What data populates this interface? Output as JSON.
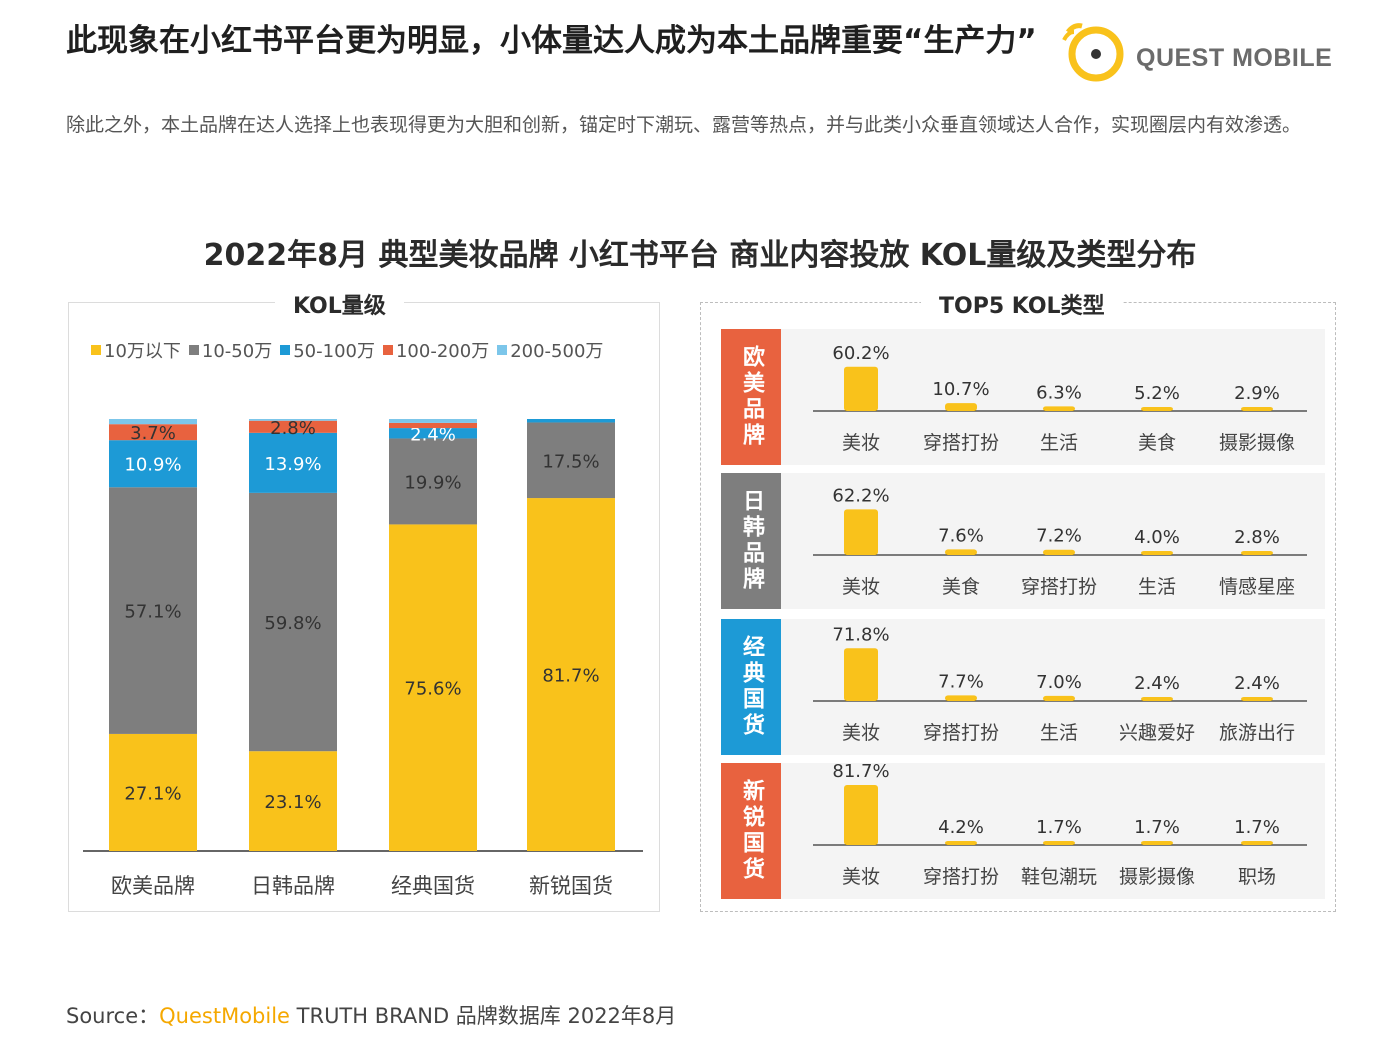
{
  "header": {
    "headline": "此现象在小红书平台更为明显，小体量达人成为本土品牌重要“生产力”",
    "subtext": "除此之外，本土品牌在达人选择上也表现得更为大胆和创新，锚定时下潮玩、露营等热点，并与此类小众垂直领域达人合作，实现圈层内有效渗透。",
    "logo_text": "QUEST MOBILE"
  },
  "chart_title": "2022年8月 典型美妆品牌 小红书平台 商业内容投放 KOL量级及类型分布",
  "colors": {
    "yellow": "#f9c21b",
    "gray": "#7e7e7e",
    "blue": "#1d9ad6",
    "orange": "#e8623f",
    "lightblue": "#7cc6ea"
  },
  "chart_data": [
    {
      "type": "bar",
      "stacked": true,
      "panel_label": "KOL量级",
      "categories": [
        "欧美品牌",
        "日韩品牌",
        "经典国货",
        "新锐国货"
      ],
      "ylim": [
        0,
        100
      ],
      "series": [
        {
          "name": "10万以下",
          "color": "#f9c21b",
          "values": [
            27.1,
            23.1,
            75.6,
            81.7
          ],
          "labels": [
            "27.1%",
            "23.1%",
            "75.6%",
            "81.7%"
          ]
        },
        {
          "name": "10-50万",
          "color": "#7e7e7e",
          "values": [
            57.1,
            59.8,
            19.9,
            17.5
          ],
          "labels": [
            "57.1%",
            "59.8%",
            "19.9%",
            "17.5%"
          ]
        },
        {
          "name": "50-100万",
          "color": "#1d9ad6",
          "values": [
            10.9,
            13.9,
            2.4,
            0.8
          ],
          "labels": [
            "10.9%",
            "13.9%",
            "2.4%",
            ""
          ]
        },
        {
          "name": "100-200万",
          "color": "#e8623f",
          "values": [
            3.7,
            2.8,
            1.2,
            0
          ],
          "labels": [
            "3.7%",
            "2.8%",
            "",
            ""
          ]
        },
        {
          "name": "200-500万",
          "color": "#7cc6ea",
          "values": [
            1.2,
            0.4,
            0.9,
            0
          ],
          "labels": [
            "",
            "",
            "",
            ""
          ]
        }
      ]
    },
    {
      "type": "bar",
      "panel_label": "TOP5 KOL类型",
      "groups": [
        {
          "name": "欧美品牌",
          "color": "#e8623f",
          "categories": [
            "美妆",
            "穿搭打扮",
            "生活",
            "美食",
            "摄影摄像"
          ],
          "values": [
            60.2,
            10.7,
            6.3,
            5.2,
            2.9
          ],
          "labels": [
            "60.2%",
            "10.7%",
            "6.3%",
            "5.2%",
            "2.9%"
          ]
        },
        {
          "name": "日韩品牌",
          "color": "#7e7e7e",
          "categories": [
            "美妆",
            "美食",
            "穿搭打扮",
            "生活",
            "情感星座"
          ],
          "values": [
            62.2,
            7.6,
            7.2,
            4.0,
            2.8
          ],
          "labels": [
            "62.2%",
            "7.6%",
            "7.2%",
            "4.0%",
            "2.8%"
          ]
        },
        {
          "name": "经典国货",
          "color": "#1d9ad6",
          "categories": [
            "美妆",
            "穿搭打扮",
            "生活",
            "兴趣爱好",
            "旅游出行"
          ],
          "values": [
            71.8,
            7.7,
            7.0,
            2.4,
            2.4
          ],
          "labels": [
            "71.8%",
            "7.7%",
            "7.0%",
            "2.4%",
            "2.4%"
          ]
        },
        {
          "name": "新锐国货",
          "color": "#e8623f",
          "categories": [
            "美妆",
            "穿搭打扮",
            "鞋包潮玩",
            "摄影摄像",
            "职场"
          ],
          "values": [
            81.7,
            4.2,
            1.7,
            1.7,
            1.7
          ],
          "labels": [
            "81.7%",
            "4.2%",
            "1.7%",
            "1.7%",
            "1.7%"
          ]
        }
      ]
    }
  ],
  "source": {
    "prefix": "Source：",
    "brand": "QuestMobile",
    "suffix": " TRUTH BRAND 品牌数据库 2022年8月"
  }
}
